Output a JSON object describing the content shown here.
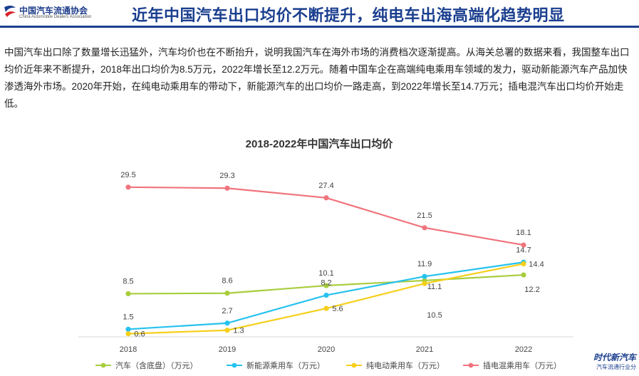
{
  "header": {
    "logo_cn": "中国汽车流通协会",
    "logo_en": "China Automobile Dealers Association",
    "title": "近年中国汽车出口均价不断提升，纯电车出海高端化趋势明显"
  },
  "paragraph": "中国汽车出口除了数量增长迅猛外，汽车均价也在不断抬升，说明我国汽车在海外市场的消费档次逐渐提高。从海关总署的数据来看，我国整车出口均价近年来不断提升，2018年出口均价为8.5万元，2022年增长至12.2万元。随着中国车企在高端纯电乘用车领域的发力，驱动新能源汽车产品加快渗透海外市场。2020年开始，在纯电动乘用车的带动下，新能源汽车的出口均价一路走高，到2022年增长至14.7万元；插电混汽车出口均价开始走低。",
  "colors": {
    "title": "#1b3f8f",
    "s1": "#a8cd3c",
    "s2": "#26c2ee",
    "s3": "#f5cf1b",
    "s4": "#f0747d"
  },
  "chart_data": {
    "type": "line",
    "title": "2018-2022年中国汽车出口均价",
    "x": [
      "2018",
      "2019",
      "2020",
      "2021",
      "2022"
    ],
    "ylim": [
      0,
      32
    ],
    "xlabel": "",
    "ylabel": "",
    "legend_position": "bottom",
    "series": [
      {
        "name": "汽车（含底盘）（万元）",
        "color": "#a8cd3c",
        "values": [
          8.5,
          8.6,
          10.1,
          11.1,
          12.2
        ],
        "labels": [
          "8.5",
          "8.6",
          "10.1",
          "11.1",
          "12.2"
        ]
      },
      {
        "name": "新能源乘用车（万元）",
        "color": "#26c2ee",
        "values": [
          1.5,
          2.7,
          8.2,
          11.9,
          14.7
        ],
        "labels": [
          "1.5",
          "2.7",
          "8.2",
          "11.9",
          "14.7"
        ]
      },
      {
        "name": "纯电动乘用车（万元）",
        "color": "#f5cf1b",
        "values": [
          0.6,
          1.3,
          5.6,
          10.5,
          14.4
        ],
        "labels": [
          "0.6",
          "1.3",
          "5.6",
          "10.5",
          "14.4"
        ]
      },
      {
        "name": "插电混乘用车（万元）",
        "color": "#f0747d",
        "values": [
          29.5,
          29.3,
          27.4,
          21.5,
          18.1
        ],
        "labels": [
          "29.5",
          "29.3",
          "27.4",
          "21.5",
          "18.1"
        ]
      }
    ]
  },
  "watermark": {
    "line1": "时代新汽车",
    "line2": "汽车流通行业分"
  }
}
